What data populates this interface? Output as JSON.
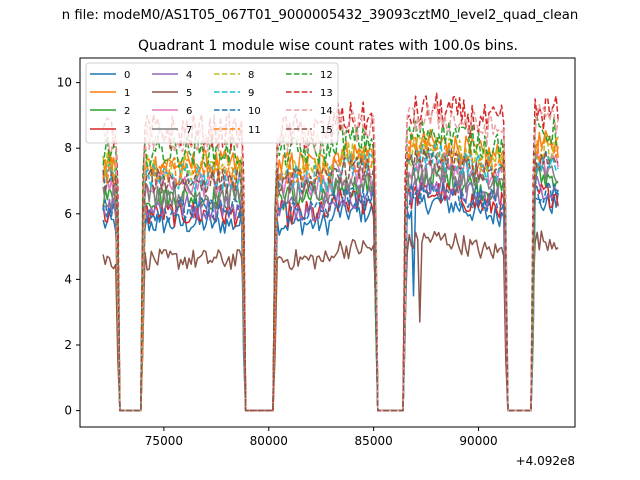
{
  "chart_data": {
    "type": "line",
    "suptitle": "n file: modeM0/AS1T05_067T01_9000005432_39093cztM0_level2_quad_clean",
    "title": "Quadrant 1 module wise count rates with 100.0s bins.",
    "xlabel": "",
    "ylabel": "",
    "x_offset_label": "+4.092e8",
    "xlim": [
      71000,
      94600
    ],
    "ylim": [
      -0.5,
      10.75
    ],
    "xticks": [
      75000,
      80000,
      85000,
      90000
    ],
    "xtick_labels": [
      "75000",
      "80000",
      "85000",
      "90000"
    ],
    "yticks": [
      0,
      2,
      4,
      6,
      8,
      10
    ],
    "ytick_labels": [
      "0",
      "2",
      "4",
      "6",
      "8",
      "10"
    ],
    "grid": false,
    "legend_placement": "top-left",
    "legend_columns": 4,
    "x_start": 72100,
    "x_step": 100,
    "gaps": [
      [
        72800,
        74000
      ],
      [
        78800,
        80300
      ],
      [
        85100,
        86500
      ],
      [
        91300,
        92600
      ]
    ],
    "x_end": 93800,
    "series": [
      {
        "name": "0",
        "color": "#1f77b4",
        "dashed": false,
        "level": 5.7,
        "noise": 0.22
      },
      {
        "name": "1",
        "color": "#ff7f0e",
        "dashed": false,
        "level": 7.5,
        "noise": 0.28
      },
      {
        "name": "2",
        "color": "#2ca02c",
        "dashed": false,
        "level": 6.5,
        "noise": 0.25
      },
      {
        "name": "3",
        "color": "#d62728",
        "dashed": false,
        "level": 6.0,
        "noise": 0.25
      },
      {
        "name": "4",
        "color": "#9467bd",
        "dashed": false,
        "level": 6.2,
        "noise": 0.25
      },
      {
        "name": "5",
        "color": "#8c564b",
        "dashed": false,
        "level": 4.6,
        "noise": 0.2
      },
      {
        "name": "6",
        "color": "#e377c2",
        "dashed": false,
        "level": 6.9,
        "noise": 0.25
      },
      {
        "name": "7",
        "color": "#7f7f7f",
        "dashed": false,
        "level": 6.6,
        "noise": 0.25
      },
      {
        "name": "8",
        "color": "#bcbd22",
        "dashed": true,
        "level": 7.4,
        "noise": 0.28
      },
      {
        "name": "9",
        "color": "#17becf",
        "dashed": true,
        "level": 7.1,
        "noise": 0.28
      },
      {
        "name": "10",
        "color": "#1f77b4",
        "dashed": true,
        "level": 6.1,
        "noise": 0.25
      },
      {
        "name": "11",
        "color": "#ff7f0e",
        "dashed": true,
        "level": 7.3,
        "noise": 0.28
      },
      {
        "name": "12",
        "color": "#2ca02c",
        "dashed": true,
        "level": 7.9,
        "noise": 0.3
      },
      {
        "name": "13",
        "color": "#d62728",
        "dashed": true,
        "level": 8.5,
        "noise": 0.35
      },
      {
        "name": "14",
        "color": "#e8a0a0",
        "dashed": true,
        "level": 8.3,
        "noise": 0.3
      },
      {
        "name": "15",
        "color": "#8c564b",
        "dashed": true,
        "level": 7.0,
        "noise": 0.25
      }
    ]
  }
}
